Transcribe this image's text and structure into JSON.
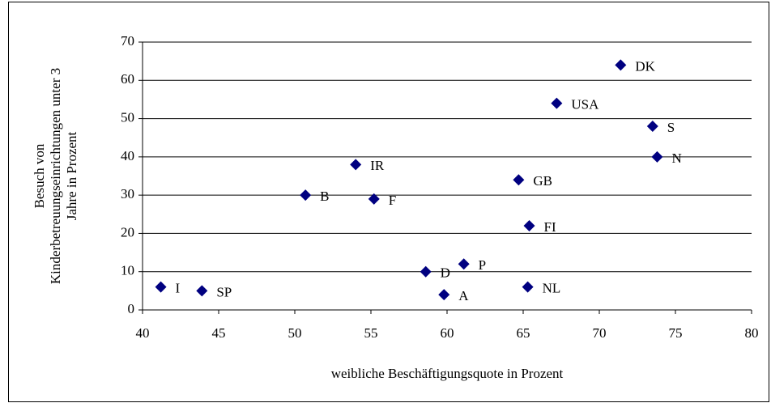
{
  "chart_data": {
    "type": "scatter",
    "xlabel": "weibliche Beschäftigungsquote in Prozent",
    "ylabel": [
      "Besuch von",
      "Kinderbetreuungseinrichtungen unter 3",
      "Jahre in Prozent"
    ],
    "labels": [
      "I",
      "SP",
      "B",
      "IR",
      "F",
      "D",
      "A",
      "P",
      "GB",
      "FI",
      "NL",
      "USA",
      "DK",
      "S",
      "N"
    ],
    "x": [
      41.2,
      43.9,
      50.7,
      54.0,
      55.2,
      58.6,
      59.8,
      61.1,
      64.7,
      65.4,
      65.3,
      67.2,
      71.4,
      73.5,
      73.8
    ],
    "y": [
      6,
      5,
      30,
      38,
      29,
      10,
      4,
      12,
      34,
      22,
      6,
      54,
      64,
      48,
      40
    ],
    "color": "#000080",
    "xlim": [
      40,
      80
    ],
    "xticks": [
      40,
      45,
      50,
      55,
      60,
      65,
      70,
      75,
      80
    ],
    "ylim": [
      0,
      70
    ],
    "yticks": [
      0,
      10,
      20,
      30,
      40,
      50,
      60,
      70
    ],
    "grid": true
  }
}
